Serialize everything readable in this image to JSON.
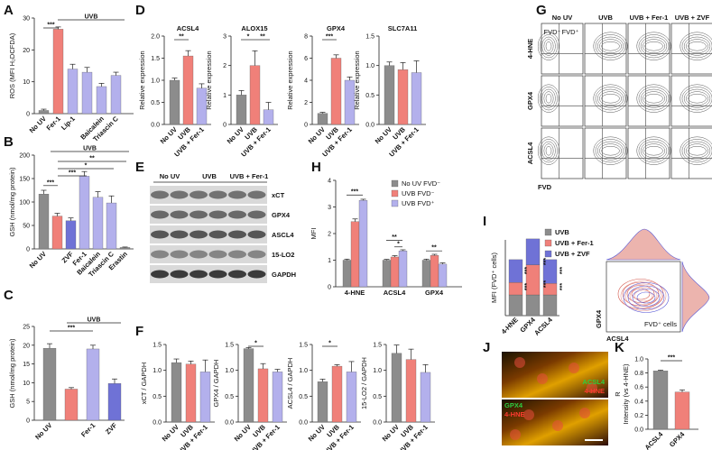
{
  "colors": {
    "noUV": "#8c8c8c",
    "uvb": "#f08079",
    "fer1": "#b3b0ec",
    "zvf": "#6f72d6",
    "lip1": "#b3b0ec",
    "baicalein": "#b3b0ec",
    "triacsin": "#b3b0ec",
    "erastin": "#8c8c8c"
  },
  "panels": [
    "A",
    "B",
    "C",
    "D",
    "E",
    "F",
    "G",
    "H",
    "I",
    "J",
    "K"
  ],
  "chart_data": [
    {
      "id": "A",
      "type": "bar",
      "ylabel": "ROS (MFI H₂DCFDA)",
      "ylim": [
        0,
        30
      ],
      "yticks": [
        0,
        10,
        20,
        30
      ],
      "categories": [
        "No UV",
        "Fer-1",
        "Lip-1",
        "Baicalein",
        "Triascin C"
      ],
      "values": [
        1,
        26.5,
        14,
        13,
        8.5
      ],
      "errors": [
        0.4,
        0.7,
        1.5,
        1.5,
        1.0
      ],
      "extra_values": [
        12
      ],
      "colorKeys": [
        "noUV",
        "uvb",
        "fer1",
        "lip1",
        "baicalein",
        "triacsin"
      ],
      "group_label": "UVB",
      "sig": [
        "***"
      ]
    },
    {
      "id": "B",
      "type": "bar",
      "ylabel": "GSH (nmol/mg protein)",
      "ylim": [
        0,
        200
      ],
      "yticks": [
        0,
        50,
        100,
        150,
        200
      ],
      "categories": [
        "No UV",
        "",
        "ZVF",
        "Fer-1",
        "Baicalein",
        "Triascin C",
        "Erastin"
      ],
      "values": [
        117,
        70,
        60,
        155,
        110,
        98,
        3
      ],
      "errors": [
        8,
        6,
        6,
        10,
        12,
        15,
        1
      ],
      "colorKeys": [
        "noUV",
        "uvb",
        "zvf",
        "fer1",
        "baicalein",
        "triacsin",
        "erastin"
      ],
      "group_label": "UVB",
      "sig": [
        "**",
        "*",
        "***",
        "***"
      ]
    },
    {
      "id": "C",
      "type": "bar",
      "ylabel": "GSH (nmol/mg protein)",
      "ylim": [
        0,
        25
      ],
      "yticks": [
        0,
        5,
        10,
        15,
        20,
        25
      ],
      "categories": [
        "No UV",
        "",
        "Fer-1",
        "ZVF"
      ],
      "values": [
        19.2,
        8.3,
        19.0,
        9.8
      ],
      "errors": [
        1.2,
        0.4,
        1.0,
        1.2
      ],
      "colorKeys": [
        "noUV",
        "uvb",
        "fer1",
        "zvf"
      ],
      "group_label": "UVB",
      "sig": [
        "***"
      ]
    },
    {
      "id": "D",
      "type": "bar",
      "ylabel": "Relative expression",
      "categories": [
        "No UV",
        "UVB",
        "UVB + Fer-1"
      ],
      "subplots": [
        {
          "title": "ACSL4",
          "ylim": [
            0,
            2.0
          ],
          "yticks": [
            0.0,
            0.5,
            1.0,
            1.5,
            2.0
          ],
          "values": [
            1.0,
            1.55,
            0.82
          ],
          "errors": [
            0.05,
            0.12,
            0.1
          ],
          "sig": [
            "**"
          ]
        },
        {
          "title": "ALOX15",
          "ylim": [
            0,
            3
          ],
          "yticks": [
            0,
            1,
            2,
            3
          ],
          "values": [
            1.0,
            2.0,
            0.5
          ],
          "errors": [
            0.15,
            0.5,
            0.25
          ],
          "sig": [
            "*",
            "**"
          ]
        },
        {
          "title": "GPX4",
          "ylim": [
            0,
            8
          ],
          "yticks": [
            0,
            2,
            4,
            6,
            8
          ],
          "values": [
            1.0,
            6.0,
            4.0
          ],
          "errors": [
            0.1,
            0.3,
            0.3
          ],
          "sig": [
            "***"
          ]
        },
        {
          "title": "SLC7A11",
          "ylim": [
            0,
            1.5
          ],
          "yticks": [
            0.0,
            0.5,
            1.0,
            1.5
          ],
          "values": [
            1.0,
            0.93,
            0.88
          ],
          "errors": [
            0.06,
            0.12,
            0.2
          ],
          "sig": []
        }
      ]
    },
    {
      "id": "F",
      "type": "bar",
      "categories": [
        "No UV",
        "UVB",
        "UVB + Fer-1"
      ],
      "subplots": [
        {
          "ylabel": "xCT / GAPDH",
          "ylim": [
            0,
            1.5
          ],
          "yticks": [
            0.0,
            0.5,
            1.0,
            1.5
          ],
          "values": [
            1.15,
            1.12,
            0.97
          ],
          "errors": [
            0.07,
            0.06,
            0.23
          ],
          "sig": []
        },
        {
          "ylabel": "GPX4 / GAPDH",
          "ylim": [
            0,
            1.5
          ],
          "yticks": [
            0.0,
            0.5,
            1.0,
            1.5
          ],
          "values": [
            1.42,
            1.03,
            0.97
          ],
          "errors": [
            0.02,
            0.1,
            0.05
          ],
          "sig": [
            "*"
          ]
        },
        {
          "ylabel": "ACSL4 / GAPDH",
          "ylim": [
            0,
            1.5
          ],
          "yticks": [
            0.0,
            0.5,
            1.0,
            1.5
          ],
          "values": [
            0.78,
            1.08,
            0.97
          ],
          "errors": [
            0.05,
            0.03,
            0.2
          ],
          "sig": [
            "*"
          ]
        },
        {
          "ylabel": "15-LO2 / GAPDH",
          "ylim": [
            0,
            1.5
          ],
          "yticks": [
            0.0,
            0.5,
            1.0,
            1.5
          ],
          "values": [
            1.33,
            1.21,
            0.96
          ],
          "errors": [
            0.16,
            0.2,
            0.15
          ],
          "sig": []
        }
      ]
    },
    {
      "id": "H",
      "type": "bar",
      "ylabel": "MFI",
      "ylim": [
        0,
        4
      ],
      "yticks": [
        0,
        1,
        2,
        3,
        4
      ],
      "categories": [
        "4-HNE",
        "ACSL4",
        "GPX4"
      ],
      "legend_position": "top-right",
      "series": [
        {
          "name": "No UV FVD⁻",
          "values": [
            1.0,
            1.0,
            1.0
          ],
          "errors": [
            0.04,
            0.03,
            0.04
          ]
        },
        {
          "name": "UVB FVD⁻",
          "values": [
            2.45,
            1.12,
            1.18
          ],
          "errors": [
            0.1,
            0.05,
            0.04
          ]
        },
        {
          "name": "UVB FVD⁺",
          "values": [
            3.25,
            1.35,
            0.85
          ],
          "errors": [
            0.04,
            0.04,
            0.05
          ]
        }
      ],
      "sig": [
        "***",
        "**",
        "*",
        "**"
      ]
    },
    {
      "id": "I",
      "type": "bar",
      "stacked": true,
      "ylabel": "MFI (FVD⁺ cells)",
      "categories": [
        "4-HNE",
        "GPX4",
        "ACSL4"
      ],
      "legend_position": "top-right",
      "series": [
        {
          "name": "UVB",
          "values": [
            1.0,
            1.0,
            1.0
          ]
        },
        {
          "name": "UVB + Fer-1",
          "values": [
            0.6,
            1.45,
            0.55
          ]
        },
        {
          "name": "UVB + ZVF",
          "values": [
            1.1,
            1.25,
            1.15
          ]
        }
      ],
      "sig": [
        "***",
        "***",
        "***",
        "***",
        "***",
        "***"
      ]
    },
    {
      "id": "K",
      "type": "bar",
      "ylabel": "R\nIntensity (vs 4-HNE)",
      "ylim": [
        0,
        1.0
      ],
      "yticks": [
        0.0,
        0.2,
        0.4,
        0.6,
        0.8,
        1.0
      ],
      "categories": [
        "ACSL4",
        "GPX4"
      ],
      "values": [
        0.83,
        0.53
      ],
      "errors": [
        0.01,
        0.03
      ],
      "sig": [
        "***"
      ]
    }
  ],
  "blot": {
    "columns": [
      "No UV",
      "UVB",
      "UVB + Fer-1"
    ],
    "rows": [
      "xCT",
      "GPX4",
      "ASCL4",
      "15-LO2",
      "GAPDH"
    ]
  },
  "flow_G": {
    "columns": [
      "No UV",
      "UVB",
      "UVB + Fer-1",
      "UVB + ZVF"
    ],
    "rows": [
      "4-HNE",
      "GPX4",
      "ACSL4"
    ],
    "xlabel": "FVD",
    "gate_labels": [
      "FVD⁻",
      "FVD⁺"
    ]
  },
  "histogram_I": {
    "xlabel": "ACSL4",
    "ylabel": "GPX4",
    "caption": "FVD⁺ cells"
  },
  "image_J": {
    "top_labels": [
      "ACSL4",
      "4-HNE"
    ],
    "bottom_labels": [
      "GPX4",
      "4-HNE"
    ]
  }
}
